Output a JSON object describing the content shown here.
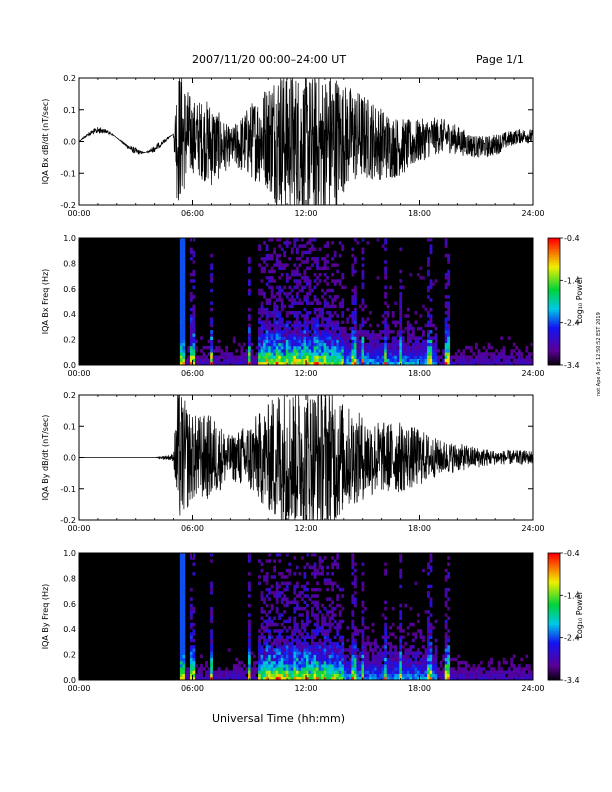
{
  "header": {
    "title": "2007/11/20  00:00–24:00 UT",
    "page": "Page 1/1"
  },
  "footer": {
    "xlabel": "Universal Time (hh:mm)"
  },
  "side_note": "not Ape Apr 5 12:50:52 EST 2019",
  "chart_data": [
    {
      "type": "line",
      "title": "",
      "ylabel": "IQA Bx dB/dt (nT/sec)",
      "x_ticks": [
        "00:00",
        "06:00",
        "12:00",
        "18:00",
        "24:00"
      ],
      "y_ticks": [
        "-0.2",
        "-0.1",
        "0.0",
        "0.1",
        "0.2"
      ],
      "xlim": [
        0,
        24
      ],
      "ylim": [
        -0.2,
        0.2
      ],
      "series": [
        {
          "x": [
            0,
            1,
            2,
            3,
            4,
            5,
            5.2,
            6,
            7,
            8,
            9,
            10,
            10.5,
            11,
            12,
            13,
            13.5,
            14,
            15,
            16,
            17,
            18,
            19,
            20,
            21,
            22,
            23,
            24
          ],
          "y": [
            0.0,
            -0.01,
            0.0,
            0.01,
            -0.01,
            0.0,
            0.2,
            0.1,
            0.12,
            0.05,
            0.1,
            0.15,
            0.2,
            0.2,
            0.2,
            0.2,
            0.2,
            0.15,
            0.12,
            0.1,
            0.08,
            0.06,
            0.05,
            0.04,
            0.03,
            0.03,
            0.02,
            0.02
          ]
        }
      ]
    },
    {
      "type": "heatmap",
      "title": "",
      "ylabel": "IQA Bx Freq (Hz)",
      "x_ticks": [
        "00:00",
        "06:00",
        "12:00",
        "18:00",
        "24:00"
      ],
      "y_ticks": [
        "0.0",
        "0.2",
        "0.4",
        "0.6",
        "0.8",
        "1.0"
      ],
      "xlim": [
        0,
        24
      ],
      "ylim": [
        0.0,
        1.0
      ],
      "colorbar": {
        "label": "Log₁₀ Power",
        "ticks": [
          "-0.4",
          "-1.4",
          "-2.4",
          "-3.4"
        ],
        "range": [
          -3.4,
          -0.4
        ]
      },
      "activity_hours": [
        5.5,
        6.0,
        7.0,
        9.0,
        10.0,
        10.5,
        11.0,
        11.5,
        12.0,
        12.5,
        13.0,
        14.5,
        15.0,
        16.2,
        17.0,
        18.5,
        19.5
      ]
    },
    {
      "type": "line",
      "title": "",
      "ylabel": "IQA By dB/dt (nT/sec)",
      "x_ticks": [
        "00:00",
        "06:00",
        "12:00",
        "18:00",
        "24:00"
      ],
      "y_ticks": [
        "-0.2",
        "-0.1",
        "0.0",
        "0.1",
        "0.2"
      ],
      "xlim": [
        0,
        24
      ],
      "ylim": [
        -0.2,
        0.2
      ],
      "series": [
        {
          "x": [
            0,
            1,
            2,
            3,
            4,
            5,
            5.2,
            6,
            7,
            8,
            9,
            10,
            10.5,
            11,
            12,
            13,
            13.5,
            14,
            15,
            16,
            17,
            18,
            19,
            20,
            21,
            22,
            23,
            24
          ],
          "y": [
            0.0,
            0.0,
            0.0,
            0.0,
            0.0,
            0.01,
            0.2,
            0.12,
            0.12,
            0.06,
            0.1,
            0.15,
            0.2,
            0.2,
            0.2,
            0.2,
            0.2,
            0.15,
            0.12,
            0.1,
            0.1,
            0.08,
            0.05,
            0.04,
            0.03,
            0.02,
            0.02,
            0.02
          ]
        }
      ]
    },
    {
      "type": "heatmap",
      "title": "",
      "ylabel": "IQA By Freq (Hz)",
      "x_ticks": [
        "00:00",
        "06:00",
        "12:00",
        "18:00",
        "24:00"
      ],
      "y_ticks": [
        "0.0",
        "0.2",
        "0.4",
        "0.6",
        "0.8",
        "1.0"
      ],
      "xlim": [
        0,
        24
      ],
      "ylim": [
        0.0,
        1.0
      ],
      "colorbar": {
        "label": "Log₁₀ Power",
        "ticks": [
          "-0.4",
          "-1.4",
          "-2.4",
          "-3.4"
        ],
        "range": [
          -3.4,
          -0.4
        ]
      },
      "activity_hours": [
        5.5,
        6.0,
        7.0,
        9.0,
        10.0,
        10.5,
        11.0,
        11.5,
        12.0,
        12.5,
        13.0,
        14.5,
        15.0,
        16.2,
        17.0,
        18.5,
        19.5
      ]
    }
  ]
}
